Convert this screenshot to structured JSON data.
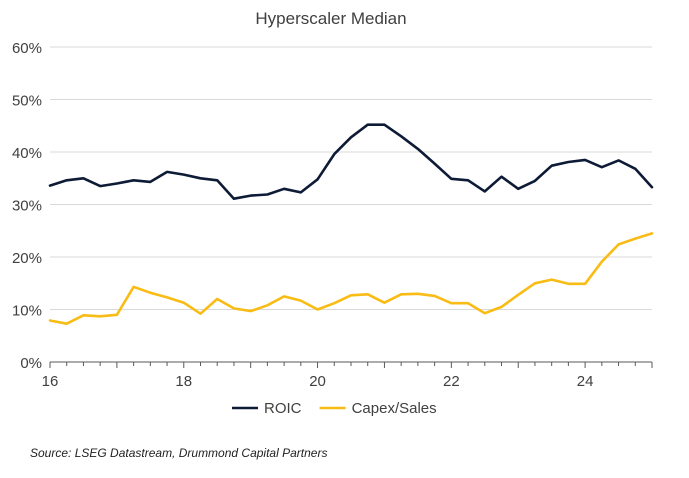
{
  "chart_data": {
    "type": "line",
    "title": "Hyperscaler Median",
    "xlabel": "",
    "ylabel": "",
    "xlim": [
      16,
      25
    ],
    "ylim": [
      0,
      60
    ],
    "grid": "horizontal",
    "legend_position": "bottom-center",
    "x_ticks": [
      16,
      18,
      20,
      22,
      24
    ],
    "x_tick_labels": [
      "16",
      "18",
      "20",
      "22",
      "24"
    ],
    "y_ticks": [
      0,
      10,
      20,
      30,
      40,
      50,
      60
    ],
    "y_tick_labels": [
      "0%",
      "10%",
      "20%",
      "30%",
      "40%",
      "50%",
      "60%"
    ],
    "x": [
      16.0,
      16.25,
      16.5,
      16.75,
      17.0,
      17.25,
      17.5,
      17.75,
      18.0,
      18.25,
      18.5,
      18.75,
      19.0,
      19.25,
      19.5,
      19.75,
      20.0,
      20.25,
      20.5,
      20.75,
      21.0,
      21.25,
      21.5,
      21.75,
      22.0,
      22.25,
      22.5,
      22.75,
      23.0,
      23.25,
      23.5,
      23.75,
      24.0,
      24.25,
      24.5,
      24.75,
      25.0
    ],
    "series": [
      {
        "name": "ROIC",
        "color": "#0d1b36",
        "values": [
          33.6,
          34.6,
          35.0,
          33.5,
          34.0,
          34.6,
          34.3,
          36.2,
          35.7,
          35.0,
          34.6,
          31.1,
          31.7,
          31.9,
          33.0,
          32.3,
          34.8,
          39.6,
          42.8,
          45.2,
          45.2,
          43.0,
          40.6,
          37.8,
          34.9,
          34.6,
          32.5,
          35.3,
          33.0,
          34.5,
          37.4,
          38.1,
          38.5,
          37.1,
          38.4,
          36.8,
          33.3
        ]
      },
      {
        "name": "Capex/Sales",
        "color": "#f9bc15",
        "values": [
          7.9,
          7.3,
          8.9,
          8.7,
          9.0,
          14.3,
          13.2,
          12.3,
          11.3,
          9.2,
          12.0,
          10.2,
          9.7,
          10.8,
          12.5,
          11.7,
          10.0,
          11.2,
          12.7,
          12.9,
          11.3,
          12.9,
          13.0,
          12.6,
          11.2,
          11.2,
          9.3,
          10.5,
          12.8,
          15.0,
          15.7,
          14.9,
          14.9,
          19.1,
          22.4,
          23.5,
          24.5
        ]
      }
    ],
    "source": "Source: LSEG Datastream, Drummond Capital Partners"
  }
}
